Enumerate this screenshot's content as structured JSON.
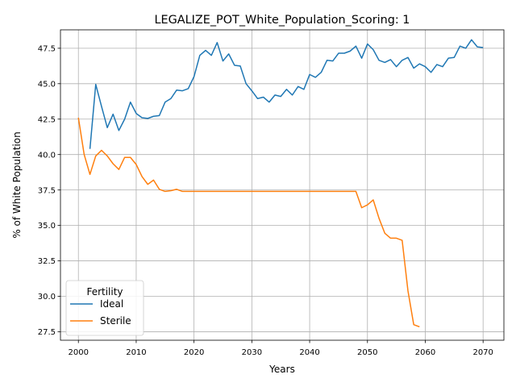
{
  "chart_data": {
    "type": "line",
    "title": "LEGALIZE_POT_White_Population_Scoring: 1",
    "xlabel": "Years",
    "ylabel": "% of White Population",
    "xlim": [
      1996.9,
      2073.6
    ],
    "ylim": [
      26.9,
      48.8
    ],
    "xticks": [
      2000,
      2010,
      2020,
      2030,
      2040,
      2050,
      2060,
      2070
    ],
    "yticks": [
      27.5,
      30.0,
      32.5,
      35.0,
      37.5,
      40.0,
      42.5,
      45.0,
      47.5
    ],
    "grid": true,
    "legend": {
      "title": "Fertility",
      "placement": "lower-left"
    },
    "series": [
      {
        "name": "Ideal",
        "color": "#1f77b4",
        "x": [
          2002,
          2003,
          2004,
          2005,
          2006,
          2007,
          2008,
          2009,
          2010,
          2011,
          2012,
          2013,
          2014,
          2015,
          2016,
          2017,
          2018,
          2019,
          2020,
          2021,
          2022,
          2023,
          2024,
          2025,
          2026,
          2027,
          2028,
          2029,
          2030,
          2031,
          2032,
          2033,
          2034,
          2035,
          2036,
          2037,
          2038,
          2039,
          2040,
          2041,
          2042,
          2043,
          2044,
          2045,
          2046,
          2047,
          2048,
          2049,
          2050,
          2051,
          2052,
          2053,
          2054,
          2055,
          2056,
          2057,
          2058,
          2059,
          2060,
          2061,
          2062,
          2063,
          2064,
          2065,
          2066,
          2067,
          2068,
          2069,
          2070
        ],
        "values": [
          40.4,
          44.95,
          43.4,
          41.9,
          42.85,
          41.7,
          42.5,
          43.7,
          42.9,
          42.6,
          42.55,
          42.7,
          42.75,
          43.7,
          43.95,
          44.55,
          44.5,
          44.65,
          45.5,
          47.0,
          47.35,
          47.0,
          47.9,
          46.6,
          47.1,
          46.3,
          46.25,
          45.0,
          44.5,
          43.95,
          44.05,
          43.7,
          44.2,
          44.1,
          44.6,
          44.2,
          44.8,
          44.6,
          45.65,
          45.45,
          45.8,
          46.65,
          46.6,
          47.15,
          47.15,
          47.3,
          47.65,
          46.8,
          47.8,
          47.4,
          46.65,
          46.5,
          46.7,
          46.2,
          46.65,
          46.85,
          46.1,
          46.4,
          46.2,
          45.8,
          46.35,
          46.2,
          46.8,
          46.85,
          47.65,
          47.5,
          48.1,
          47.6,
          47.55
        ]
      },
      {
        "name": "Sterile",
        "color": "#ff7f0e",
        "x": [
          2000,
          2001,
          2002,
          2003,
          2004,
          2005,
          2006,
          2007,
          2008,
          2009,
          2010,
          2011,
          2012,
          2013,
          2014,
          2015,
          2016,
          2017,
          2018,
          2019,
          2020,
          2021,
          2022,
          2023,
          2024,
          2025,
          2026,
          2027,
          2028,
          2029,
          2030,
          2031,
          2032,
          2033,
          2034,
          2035,
          2036,
          2037,
          2038,
          2039,
          2040,
          2041,
          2042,
          2043,
          2044,
          2045,
          2046,
          2047,
          2048,
          2049,
          2050,
          2051,
          2052,
          2053,
          2054,
          2055,
          2056,
          2057,
          2058,
          2059
        ],
        "values": [
          42.6,
          40.0,
          38.6,
          39.9,
          40.3,
          39.9,
          39.35,
          38.95,
          39.8,
          39.8,
          39.3,
          38.45,
          37.9,
          38.2,
          37.55,
          37.4,
          37.45,
          37.55,
          37.4,
          37.4,
          37.4,
          37.4,
          37.4,
          37.4,
          37.4,
          37.4,
          37.4,
          37.4,
          37.4,
          37.4,
          37.4,
          37.4,
          37.4,
          37.4,
          37.4,
          37.4,
          37.4,
          37.4,
          37.4,
          37.4,
          37.4,
          37.4,
          37.4,
          37.4,
          37.4,
          37.4,
          37.4,
          37.4,
          37.4,
          36.25,
          36.45,
          36.8,
          35.5,
          34.45,
          34.1,
          34.1,
          33.95,
          30.4,
          28.0,
          27.85
        ]
      }
    ]
  }
}
